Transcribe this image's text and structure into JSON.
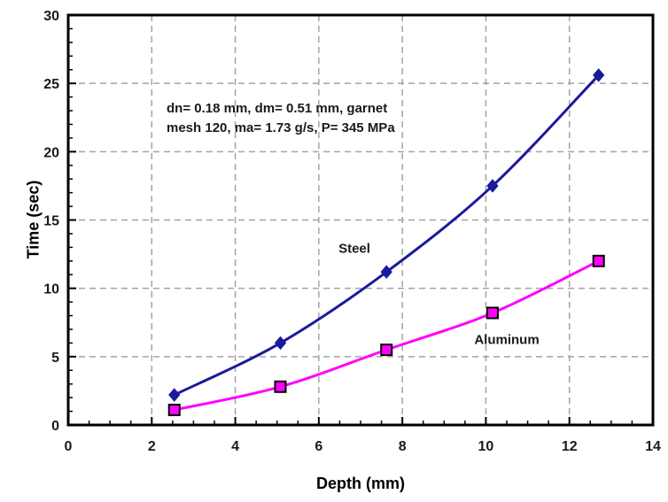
{
  "figure": {
    "background": "#ffffff",
    "axis_color": "#000000",
    "tick_label_color": "#1a1a1a"
  },
  "chart_data": {
    "type": "line",
    "title": "",
    "xlabel": "Depth (mm)",
    "ylabel": "Time (sec)",
    "xlim": [
      0,
      14
    ],
    "ylim": [
      0,
      30
    ],
    "x_major_ticks": [
      0,
      2,
      4,
      6,
      8,
      10,
      12,
      14
    ],
    "x_minor_step": 0.5,
    "y_major_ticks": [
      0,
      5,
      10,
      15,
      20,
      25,
      30
    ],
    "y_minor_step": 1,
    "grid": {
      "x_lines": [
        2,
        4,
        6,
        8,
        10,
        12
      ],
      "y_lines": [
        5,
        10,
        15,
        20,
        25
      ],
      "color": "#a3a3a3",
      "dash": "7 5"
    },
    "legend_position": "none",
    "annotation": {
      "line1": "dn= 0.18 mm, dm= 0.51 mm, garnet",
      "line2": "mesh 120, ma= 1.73 g/s, P= 345 MPa"
    },
    "series": [
      {
        "name": "Steel",
        "color": "#1a1a9c",
        "marker": "diamond",
        "marker_edge": "#1a1a9c",
        "x": [
          2.54,
          5.08,
          7.62,
          10.16,
          12.7
        ],
        "y": [
          2.2,
          6.0,
          11.2,
          17.5,
          25.6
        ]
      },
      {
        "name": "Aluminum",
        "color": "#ff00ff",
        "marker": "square",
        "marker_edge": "#000000",
        "x": [
          2.54,
          5.08,
          7.62,
          10.16,
          12.7
        ],
        "y": [
          1.1,
          2.8,
          5.5,
          8.2,
          12.0
        ]
      }
    ]
  }
}
